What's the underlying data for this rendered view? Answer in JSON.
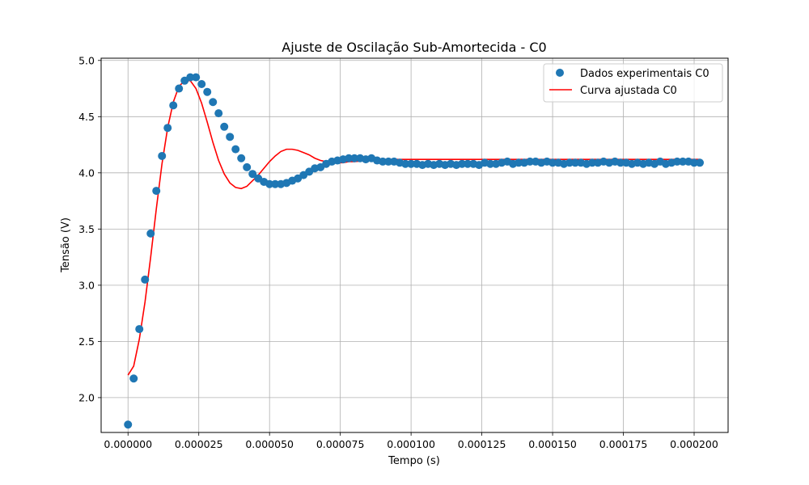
{
  "chart_data": {
    "type": "scatter",
    "title": "Ajuste de Oscilação Sub-Amortecida - C0",
    "xlabel": "Tempo (s)",
    "ylabel": "Tensão (V)",
    "xlim": [
      -9.5e-06,
      0.000212
    ],
    "ylim": [
      1.69,
      5.02
    ],
    "xticks": [
      0,
      2.5e-05,
      5e-05,
      7.5e-05,
      0.0001,
      0.000125,
      0.00015,
      0.000175,
      0.0002
    ],
    "xtick_labels": [
      "0.000000",
      "0.000025",
      "0.000050",
      "0.000075",
      "0.000100",
      "0.000125",
      "0.000150",
      "0.000175",
      "0.000200"
    ],
    "yticks": [
      2.0,
      2.5,
      3.0,
      3.5,
      4.0,
      4.5,
      5.0
    ],
    "ytick_labels": [
      "2.0",
      "2.5",
      "3.0",
      "3.5",
      "4.0",
      "4.5",
      "5.0"
    ],
    "grid": true,
    "legend_position": "top-right",
    "series": [
      {
        "name": "Dados experimentais C0",
        "kind": "scatter",
        "color": "#1f77b4",
        "x": [
          0,
          2e-06,
          4e-06,
          6e-06,
          8e-06,
          1e-05,
          1.2e-05,
          1.4e-05,
          1.6e-05,
          1.8e-05,
          2e-05,
          2.2e-05,
          2.4e-05,
          2.6e-05,
          2.8e-05,
          3e-05,
          3.2e-05,
          3.4e-05,
          3.6e-05,
          3.8e-05,
          4e-05,
          4.2e-05,
          4.4e-05,
          4.6e-05,
          4.8e-05,
          5e-05,
          5.2e-05,
          5.4e-05,
          5.6e-05,
          5.8e-05,
          6e-05,
          6.2e-05,
          6.4e-05,
          6.6e-05,
          6.8e-05,
          7e-05,
          7.2e-05,
          7.4e-05,
          7.6e-05,
          7.8e-05,
          8e-05,
          8.2e-05,
          8.4e-05,
          8.6e-05,
          8.8e-05,
          9e-05,
          9.2e-05,
          9.4e-05,
          9.6e-05,
          9.8e-05,
          0.0001,
          0.000102,
          0.000104,
          0.000106,
          0.000108,
          0.00011,
          0.000112,
          0.000114,
          0.000116,
          0.000118,
          0.00012,
          0.000122,
          0.000124,
          0.000126,
          0.000128,
          0.00013,
          0.000132,
          0.000134,
          0.000136,
          0.000138,
          0.00014,
          0.000142,
          0.000144,
          0.000146,
          0.000148,
          0.00015,
          0.000152,
          0.000154,
          0.000156,
          0.000158,
          0.00016,
          0.000162,
          0.000164,
          0.000166,
          0.000168,
          0.00017,
          0.000172,
          0.000174,
          0.000176,
          0.000178,
          0.00018,
          0.000182,
          0.000184,
          0.000186,
          0.000188,
          0.00019,
          0.000192,
          0.000194,
          0.000196,
          0.000198,
          0.0002,
          0.000202
        ],
        "y": [
          1.76,
          2.17,
          2.61,
          3.05,
          3.46,
          3.84,
          4.15,
          4.4,
          4.6,
          4.75,
          4.82,
          4.85,
          4.85,
          4.79,
          4.72,
          4.63,
          4.53,
          4.41,
          4.32,
          4.21,
          4.13,
          4.05,
          3.99,
          3.95,
          3.92,
          3.9,
          3.9,
          3.9,
          3.91,
          3.93,
          3.95,
          3.98,
          4.01,
          4.04,
          4.05,
          4.08,
          4.1,
          4.11,
          4.12,
          4.13,
          4.13,
          4.13,
          4.12,
          4.13,
          4.11,
          4.1,
          4.1,
          4.1,
          4.09,
          4.08,
          4.08,
          4.08,
          4.07,
          4.08,
          4.07,
          4.08,
          4.07,
          4.08,
          4.07,
          4.08,
          4.08,
          4.08,
          4.07,
          4.09,
          4.08,
          4.08,
          4.09,
          4.1,
          4.08,
          4.09,
          4.09,
          4.1,
          4.1,
          4.09,
          4.1,
          4.09,
          4.09,
          4.08,
          4.09,
          4.09,
          4.09,
          4.08,
          4.09,
          4.09,
          4.1,
          4.09,
          4.1,
          4.09,
          4.09,
          4.08,
          4.09,
          4.08,
          4.09,
          4.08,
          4.1,
          4.08,
          4.09,
          4.1,
          4.1,
          4.1,
          4.09,
          4.09
        ]
      },
      {
        "name": "Curva ajustada C0",
        "kind": "line",
        "color": "#ff0000",
        "x": [
          0,
          2e-06,
          4e-06,
          6e-06,
          8e-06,
          1e-05,
          1.2e-05,
          1.4e-05,
          1.6e-05,
          1.8e-05,
          2e-05,
          2.2e-05,
          2.4e-05,
          2.6e-05,
          2.8e-05,
          3e-05,
          3.2e-05,
          3.4e-05,
          3.6e-05,
          3.8e-05,
          4e-05,
          4.2e-05,
          4.4e-05,
          4.6e-05,
          4.8e-05,
          5e-05,
          5.2e-05,
          5.4e-05,
          5.6e-05,
          5.8e-05,
          6e-05,
          6.2e-05,
          6.4e-05,
          6.6e-05,
          6.8e-05,
          7e-05,
          7.2e-05,
          7.4e-05,
          7.6e-05,
          7.8e-05,
          8e-05,
          8.4e-05,
          8.8e-05,
          9.2e-05,
          9.6e-05,
          0.0001,
          0.000104,
          0.000108,
          0.000112,
          0.000116,
          0.00012,
          0.000125,
          0.00013,
          0.00014,
          0.00015,
          0.00016,
          0.00017,
          0.00018,
          0.00019,
          0.0002,
          0.000202
        ],
        "y": [
          2.2,
          2.28,
          2.52,
          2.85,
          3.25,
          3.68,
          4.08,
          4.4,
          4.63,
          4.77,
          4.82,
          4.82,
          4.75,
          4.62,
          4.45,
          4.27,
          4.11,
          3.99,
          3.91,
          3.87,
          3.86,
          3.88,
          3.93,
          3.98,
          4.04,
          4.1,
          4.15,
          4.19,
          4.21,
          4.21,
          4.2,
          4.18,
          4.16,
          4.13,
          4.11,
          4.1,
          4.09,
          4.09,
          4.09,
          4.1,
          4.1,
          4.11,
          4.12,
          4.12,
          4.12,
          4.12,
          4.12,
          4.12,
          4.12,
          4.12,
          4.12,
          4.12,
          4.12,
          4.12,
          4.12,
          4.12,
          4.12,
          4.12,
          4.12,
          4.12,
          4.12
        ]
      }
    ]
  }
}
